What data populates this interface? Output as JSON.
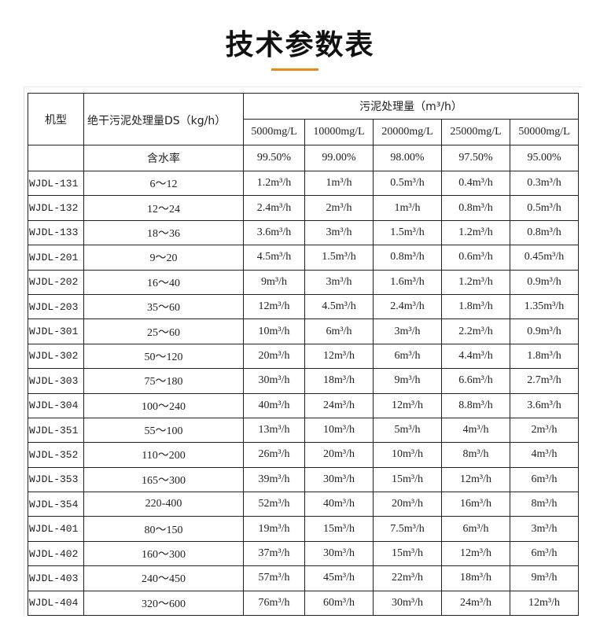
{
  "title": "技术参数表",
  "accent_color": "#e8891a",
  "table": {
    "model_header": "机型",
    "ds_header": "绝干污泥处理量DS（kg/h）",
    "capacity_header": "污泥处理量（m³/h）",
    "concentrations": [
      "5000mg/L",
      "10000mg/L",
      "20000mg/L",
      "25000mg/L",
      "50000mg/L"
    ],
    "moisture_label": "含水率",
    "moisture": [
      "99.50%",
      "99.00%",
      "98.00%",
      "97.50%",
      "95.00%"
    ],
    "rows": [
      {
        "model": "WJDL-131",
        "ds": "6～12",
        "values": [
          "1.2m³/h",
          "1m³/h",
          "0.5m³/h",
          "0.4m³/h",
          "0.3m³/h"
        ]
      },
      {
        "model": "WJDL-132",
        "ds": "12～24",
        "values": [
          "2.4m³/h",
          "2m³/h",
          "1m³/h",
          "0.8m³/h",
          "0.5m³/h"
        ]
      },
      {
        "model": "WJDL-133",
        "ds": "18～36",
        "values": [
          "3.6m³/h",
          "3m³/h",
          "1.5m³/h",
          "1.2m³/h",
          "0.8m³/h"
        ]
      },
      {
        "model": "WJDL-201",
        "ds": "9～20",
        "values": [
          "4.5m³/h",
          "1.5m³/h",
          "0.8m³/h",
          "0.6m³/h",
          "0.45m³/h"
        ]
      },
      {
        "model": "WJDL-202",
        "ds": "16～40",
        "values": [
          "9m³/h",
          "3m³/h",
          "1.6m³/h",
          "1.2m³/h",
          "0.9m³/h"
        ]
      },
      {
        "model": "WJDL-203",
        "ds": "35～60",
        "values": [
          "12m³/h",
          "4.5m³/h",
          "2.4m³/h",
          "1.8m³/h",
          "1.35m³/h"
        ]
      },
      {
        "model": "WJDL-301",
        "ds": "25～60",
        "values": [
          "10m³/h",
          "6m³/h",
          "3m³/h",
          "2.2m³/h",
          "0.9m³/h"
        ]
      },
      {
        "model": "WJDL-302",
        "ds": "50～120",
        "values": [
          "20m³/h",
          "12m³/h",
          "6m³/h",
          "4.4m³/h",
          "1.8m³/h"
        ]
      },
      {
        "model": "WJDL-303",
        "ds": "75～180",
        "values": [
          "30m³/h",
          "18m³/h",
          "9m³/h",
          "6.6m³/h",
          "2.7m³/h"
        ]
      },
      {
        "model": "WJDL-304",
        "ds": "100～240",
        "values": [
          "40m³/h",
          "24m³/h",
          "12m³/h",
          "8.8m³/h",
          "3.6m³/h"
        ]
      },
      {
        "model": "WJDL-351",
        "ds": "55～100",
        "values": [
          "13m³/h",
          "10m³/h",
          "5m³/h",
          "4m³/h",
          "2m³/h"
        ]
      },
      {
        "model": "WJDL-352",
        "ds": "110～200",
        "values": [
          "26m³/h",
          "20m³/h",
          "10m³/h",
          "8m³/h",
          "4m³/h"
        ]
      },
      {
        "model": "WJDL-353",
        "ds": "165～300",
        "values": [
          "39m³/h",
          "30m³/h",
          "15m³/h",
          "12m³/h",
          "6m³/h"
        ]
      },
      {
        "model": "WJDL-354",
        "ds": "220-400",
        "values": [
          "52m³/h",
          "40m³/h",
          "20m³/h",
          "16m³/h",
          "8m³/h"
        ]
      },
      {
        "model": "WJDL-401",
        "ds": "80～150",
        "values": [
          "19m³/h",
          "15m³/h",
          "7.5m³/h",
          "6m³/h",
          "3m³/h"
        ]
      },
      {
        "model": "WJDL-402",
        "ds": "160～300",
        "values": [
          "37m³/h",
          "30m³/h",
          "15m³/h",
          "12m³/h",
          "6m³/h"
        ]
      },
      {
        "model": "WJDL-403",
        "ds": "240～450",
        "values": [
          "57m³/h",
          "45m³/h",
          "22m³/h",
          "18m³/h",
          "9m³/h"
        ]
      },
      {
        "model": "WJDL-404",
        "ds": "320～600",
        "values": [
          "76m³/h",
          "60m³/h",
          "30m³/h",
          "24m³/h",
          "12m³/h"
        ]
      }
    ]
  }
}
